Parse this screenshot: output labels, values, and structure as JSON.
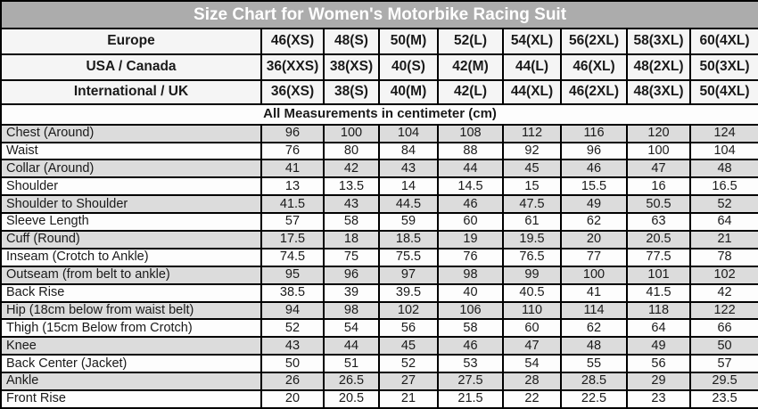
{
  "colors": {
    "title_bg": "#acacac",
    "title_text": "#ffffff",
    "header_row_bg": "#f5f5f5",
    "band_gray": "#dcdcdc",
    "band_white": "#fdfdfd",
    "border": "#000000",
    "text": "#1a1a1a"
  },
  "chart_data": {
    "type": "table",
    "title": "Size Chart for Women's Motorbike Racing Suit",
    "note": "All Measurements in centimeter (cm)",
    "measurement_unit": "cm",
    "size_rows": [
      {
        "label": "Europe",
        "values": [
          "46(XS)",
          "48(S)",
          "50(M)",
          "52(L)",
          "54(XL)",
          "56(2XL)",
          "58(3XL)",
          "60(4XL)"
        ]
      },
      {
        "label": "USA / Canada",
        "values": [
          "36(XXS)",
          "38(XS)",
          "40(S)",
          "42(M)",
          "44(L)",
          "46(XL)",
          "48(2XL)",
          "50(3XL)"
        ]
      },
      {
        "label": "International / UK",
        "values": [
          "36(XS)",
          "38(S)",
          "40(M)",
          "42(L)",
          "44(XL)",
          "46(2XL)",
          "48(3XL)",
          "50(4XL)"
        ]
      }
    ],
    "measurements": [
      {
        "label": "Chest (Around)",
        "values": [
          "96",
          "100",
          "104",
          "108",
          "112",
          "116",
          "120",
          "124"
        ]
      },
      {
        "label": "Waist",
        "values": [
          "76",
          "80",
          "84",
          "88",
          "92",
          "96",
          "100",
          "104"
        ]
      },
      {
        "label": "Collar (Around)",
        "values": [
          "41",
          "42",
          "43",
          "44",
          "45",
          "46",
          "47",
          "48"
        ]
      },
      {
        "label": "Shoulder",
        "values": [
          "13",
          "13.5",
          "14",
          "14.5",
          "15",
          "15.5",
          "16",
          "16.5"
        ]
      },
      {
        "label": "Shoulder to Shoulder",
        "values": [
          "41.5",
          "43",
          "44.5",
          "46",
          "47.5",
          "49",
          "50.5",
          "52"
        ]
      },
      {
        "label": "Sleeve Length",
        "values": [
          "57",
          "58",
          "59",
          "60",
          "61",
          "62",
          "63",
          "64"
        ]
      },
      {
        "label": "Cuff (Round)",
        "values": [
          "17.5",
          "18",
          "18.5",
          "19",
          "19.5",
          "20",
          "20.5",
          "21"
        ]
      },
      {
        "label": "Inseam (Crotch to Ankle)",
        "values": [
          "74.5",
          "75",
          "75.5",
          "76",
          "76.5",
          "77",
          "77.5",
          "78"
        ]
      },
      {
        "label": "Outseam (from belt to ankle)",
        "values": [
          "95",
          "96",
          "97",
          "98",
          "99",
          "100",
          "101",
          "102"
        ]
      },
      {
        "label": "Back Rise",
        "values": [
          "38.5",
          "39",
          "39.5",
          "40",
          "40.5",
          "41",
          "41.5",
          "42"
        ]
      },
      {
        "label": "Hip (18cm below from waist belt)",
        "values": [
          "94",
          "98",
          "102",
          "106",
          "110",
          "114",
          "118",
          "122"
        ]
      },
      {
        "label": "Thigh (15cm Below from Crotch)",
        "values": [
          "52",
          "54",
          "56",
          "58",
          "60",
          "62",
          "64",
          "66"
        ]
      },
      {
        "label": "Knee",
        "values": [
          "43",
          "44",
          "45",
          "46",
          "47",
          "48",
          "49",
          "50"
        ]
      },
      {
        "label": "Back Center (Jacket)",
        "values": [
          "50",
          "51",
          "52",
          "53",
          "54",
          "55",
          "56",
          "57"
        ]
      },
      {
        "label": "Ankle",
        "values": [
          "26",
          "26.5",
          "27",
          "27.5",
          "28",
          "28.5",
          "29",
          "29.5"
        ]
      },
      {
        "label": "Front Rise",
        "values": [
          "20",
          "20.5",
          "21",
          "21.5",
          "22",
          "22.5",
          "23",
          "23.5"
        ]
      }
    ]
  }
}
